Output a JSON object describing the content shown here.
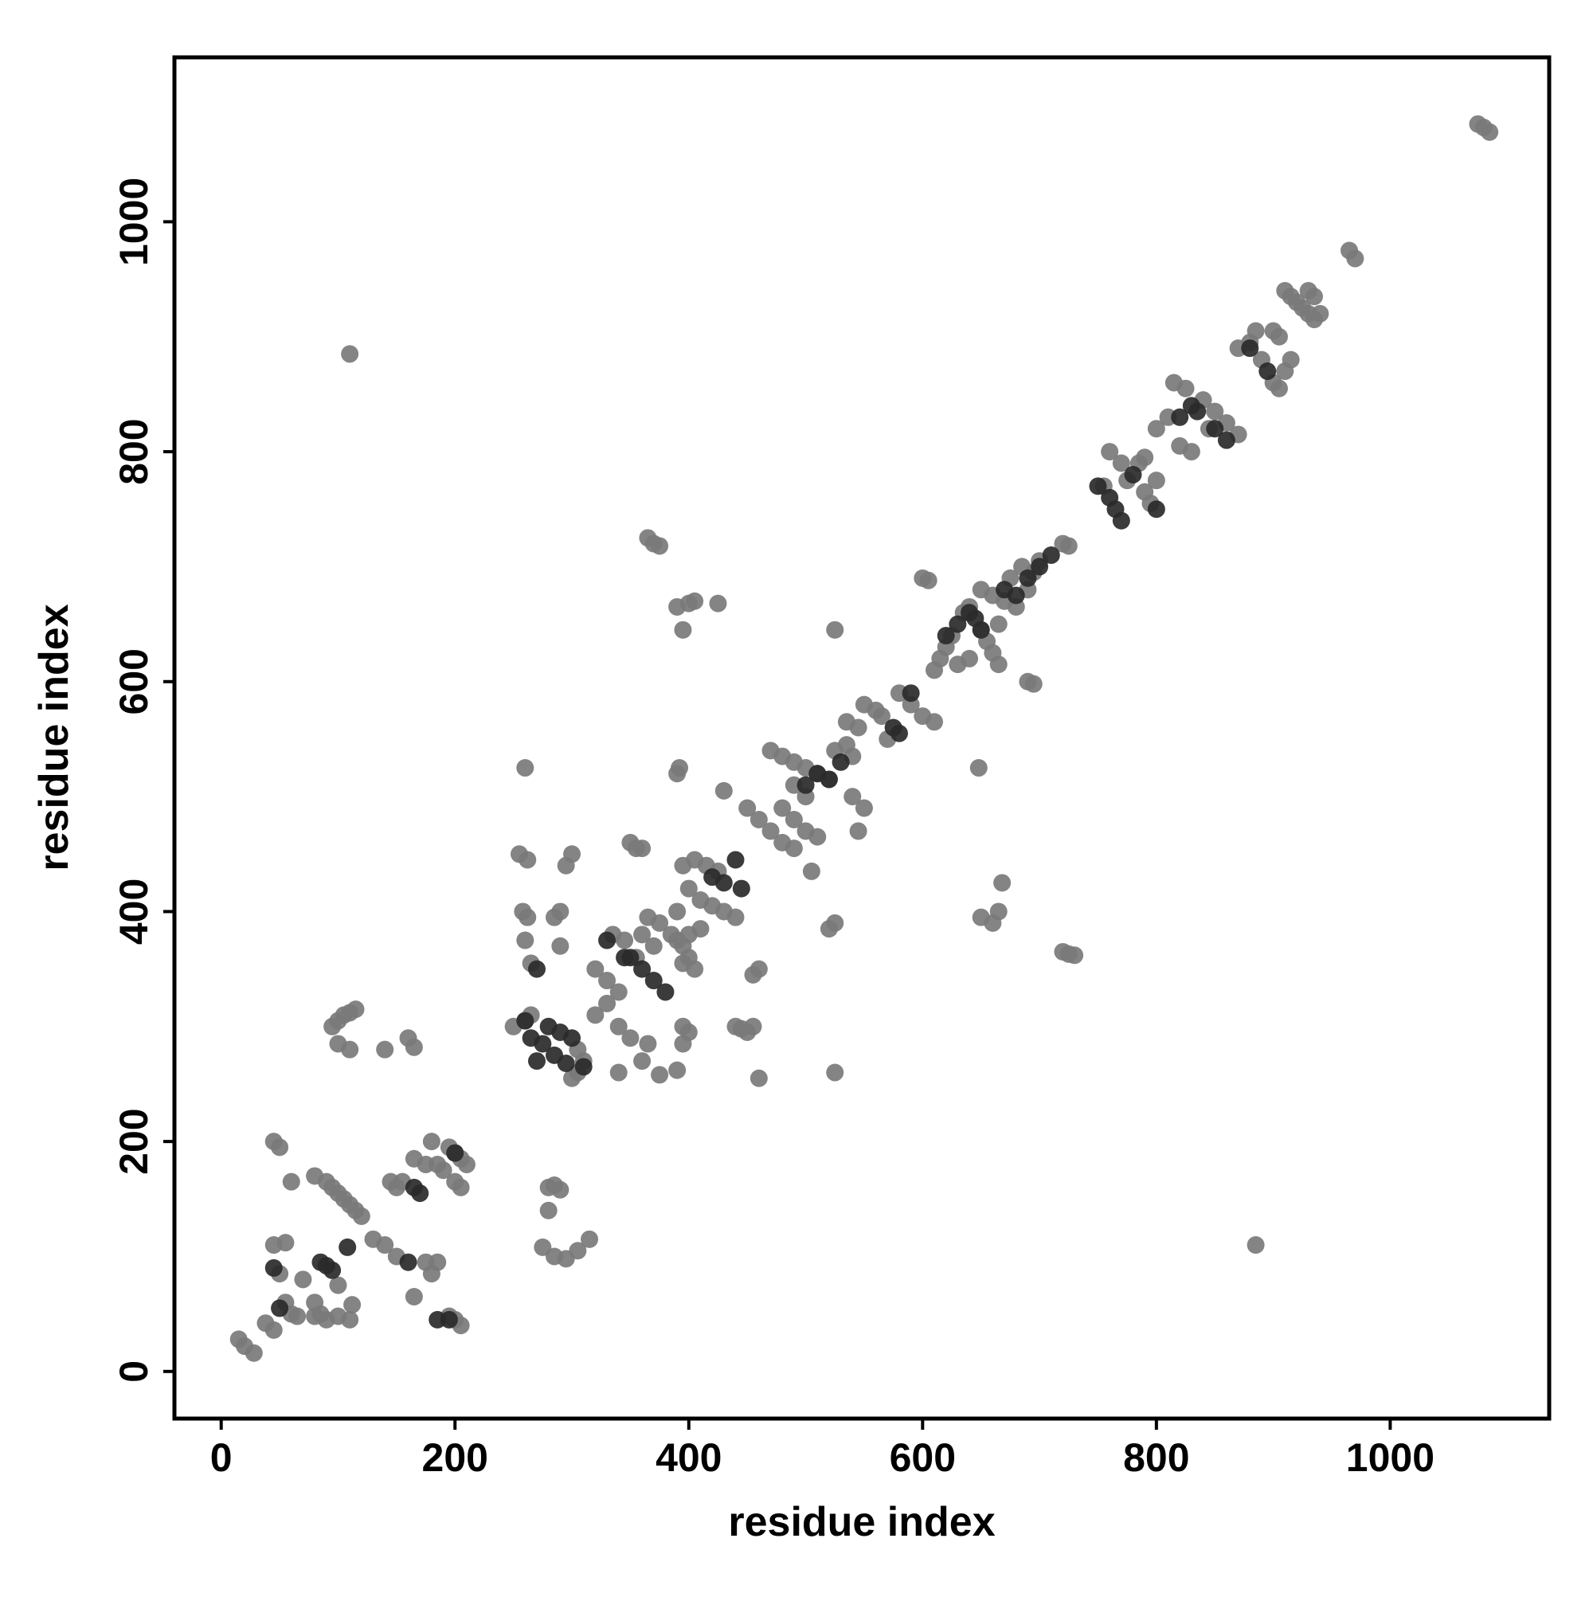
{
  "chart_data": {
    "type": "scatter",
    "xlabel": "residue index",
    "ylabel": "residue index",
    "xlim": [
      -40,
      1136
    ],
    "ylim": [
      -41,
      1143
    ],
    "xticks": [
      0,
      200,
      400,
      600,
      800,
      1000
    ],
    "yticks": [
      0,
      200,
      400,
      600,
      800,
      1000
    ],
    "series": [
      {
        "color": "#7a7a7a",
        "x": [
          15,
          20,
          28,
          38,
          45,
          45,
          50,
          60,
          50,
          55,
          60,
          65,
          70,
          80,
          100,
          80,
          85,
          90,
          100,
          110,
          112,
          45,
          55,
          80,
          90,
          95,
          100,
          105,
          110,
          115,
          120,
          95,
          100,
          105,
          110,
          115,
          100,
          110,
          140,
          160,
          165,
          130,
          140,
          150,
          175,
          180,
          185,
          165,
          145,
          150,
          155,
          175,
          165,
          185,
          190,
          180,
          195,
          200,
          205,
          210,
          200,
          205,
          195,
          200,
          205,
          280,
          285,
          290,
          280,
          275,
          285,
          295,
          305,
          315,
          260,
          250,
          260,
          265,
          305,
          310,
          305,
          300,
          255,
          262,
          258,
          262,
          260,
          265,
          285,
          290,
          295,
          300,
          290,
          320,
          330,
          340,
          330,
          320,
          340,
          350,
          360,
          365,
          340,
          375,
          335,
          345,
          355,
          365,
          375,
          385,
          395,
          400,
          390,
          370,
          360,
          350,
          355,
          360,
          365,
          370,
          375,
          390,
          400,
          405,
          425,
          395,
          390,
          392,
          395,
          405,
          415,
          425,
          400,
          410,
          420,
          430,
          440,
          410,
          400,
          390,
          395,
          405,
          395,
          400,
          395,
          390,
          440,
          445,
          450,
          455,
          460,
          455,
          460,
          430,
          450,
          460,
          470,
          480,
          490,
          470,
          480,
          490,
          500,
          510,
          520,
          540,
          550,
          545,
          490,
          500,
          480,
          490,
          500,
          510,
          525,
          535,
          540,
          505,
          520,
          525,
          525,
          525,
          535,
          545,
          550,
          560,
          565,
          570,
          580,
          590,
          600,
          610,
          600,
          605,
          610,
          615,
          620,
          625,
          635,
          640,
          650,
          655,
          660,
          665,
          650,
          660,
          670,
          680,
          690,
          695,
          700,
          720,
          725,
          675,
          685,
          665,
          640,
          630,
          648,
          650,
          660,
          665,
          668,
          690,
          695,
          720,
          725,
          730,
          755,
          775,
          785,
          790,
          795,
          760,
          770,
          790,
          800,
          800,
          810,
          840,
          850,
          860,
          870,
          815,
          825,
          845,
          820,
          830,
          870,
          880,
          885,
          890,
          900,
          905,
          910,
          915,
          905,
          900,
          910,
          915,
          920,
          925,
          930,
          935,
          940,
          930,
          935,
          965,
          970,
          1075,
          1080,
          1085,
          110,
          885
        ],
        "values": [
          28,
          22,
          16,
          42,
          36,
          200,
          195,
          165,
          85,
          60,
          50,
          48,
          80,
          60,
          75,
          48,
          50,
          45,
          48,
          45,
          58,
          110,
          112,
          170,
          165,
          160,
          155,
          150,
          145,
          140,
          135,
          300,
          305,
          310,
          312,
          315,
          285,
          280,
          280,
          290,
          282,
          115,
          110,
          100,
          95,
          85,
          95,
          65,
          165,
          160,
          165,
          180,
          185,
          180,
          175,
          200,
          195,
          190,
          185,
          180,
          165,
          160,
          48,
          45,
          40,
          160,
          162,
          158,
          140,
          108,
          100,
          98,
          105,
          115,
          525,
          300,
          305,
          310,
          280,
          270,
          260,
          255,
          450,
          445,
          400,
          395,
          375,
          355,
          395,
          400,
          440,
          450,
          370,
          350,
          340,
          330,
          320,
          310,
          300,
          290,
          270,
          285,
          260,
          258,
          380,
          375,
          360,
          395,
          390,
          380,
          370,
          360,
          400,
          370,
          380,
          460,
          455,
          455,
          725,
          720,
          718,
          665,
          668,
          670,
          668,
          645,
          520,
          525,
          440,
          445,
          440,
          435,
          420,
          410,
          405,
          400,
          395,
          385,
          380,
          375,
          355,
          350,
          300,
          295,
          285,
          262,
          300,
          298,
          295,
          300,
          255,
          345,
          350,
          505,
          490,
          480,
          470,
          460,
          455,
          540,
          535,
          530,
          525,
          520,
          515,
          500,
          490,
          470,
          510,
          500,
          490,
          480,
          470,
          465,
          540,
          545,
          535,
          435,
          385,
          390,
          260,
          645,
          565,
          560,
          580,
          575,
          570,
          550,
          590,
          580,
          570,
          565,
          690,
          688,
          610,
          620,
          630,
          640,
          660,
          665,
          645,
          635,
          625,
          615,
          680,
          675,
          670,
          665,
          680,
          695,
          705,
          720,
          718,
          690,
          700,
          650,
          620,
          615,
          525,
          395,
          390,
          400,
          425,
          600,
          598,
          365,
          363,
          362,
          770,
          775,
          790,
          765,
          755,
          800,
          790,
          795,
          775,
          820,
          830,
          845,
          835,
          825,
          815,
          860,
          855,
          820,
          805,
          800,
          890,
          895,
          905,
          880,
          860,
          855,
          870,
          880,
          900,
          905,
          940,
          935,
          930,
          925,
          920,
          915,
          920,
          940,
          935,
          975,
          968,
          1085,
          1082,
          1078,
          885,
          110
        ]
      },
      {
        "color": "#2a2a2a",
        "x": [
          45,
          50,
          85,
          90,
          95,
          108,
          160,
          165,
          170,
          185,
          195,
          200,
          260,
          265,
          270,
          280,
          290,
          300,
          275,
          285,
          295,
          310,
          270,
          330,
          345,
          360,
          370,
          380,
          350,
          420,
          430,
          440,
          445,
          500,
          510,
          520,
          530,
          575,
          580,
          590,
          620,
          630,
          640,
          645,
          650,
          670,
          680,
          690,
          700,
          710,
          750,
          760,
          765,
          770,
          780,
          800,
          820,
          830,
          835,
          850,
          860,
          880,
          895
        ],
        "values": [
          90,
          55,
          95,
          92,
          88,
          108,
          95,
          160,
          155,
          45,
          45,
          190,
          305,
          290,
          270,
          300,
          295,
          290,
          285,
          275,
          268,
          265,
          350,
          375,
          360,
          350,
          340,
          330,
          360,
          430,
          425,
          445,
          420,
          510,
          520,
          515,
          530,
          560,
          555,
          590,
          640,
          650,
          660,
          655,
          645,
          680,
          675,
          690,
          700,
          710,
          770,
          760,
          750,
          740,
          780,
          750,
          830,
          840,
          835,
          820,
          810,
          890,
          870
        ]
      }
    ]
  }
}
